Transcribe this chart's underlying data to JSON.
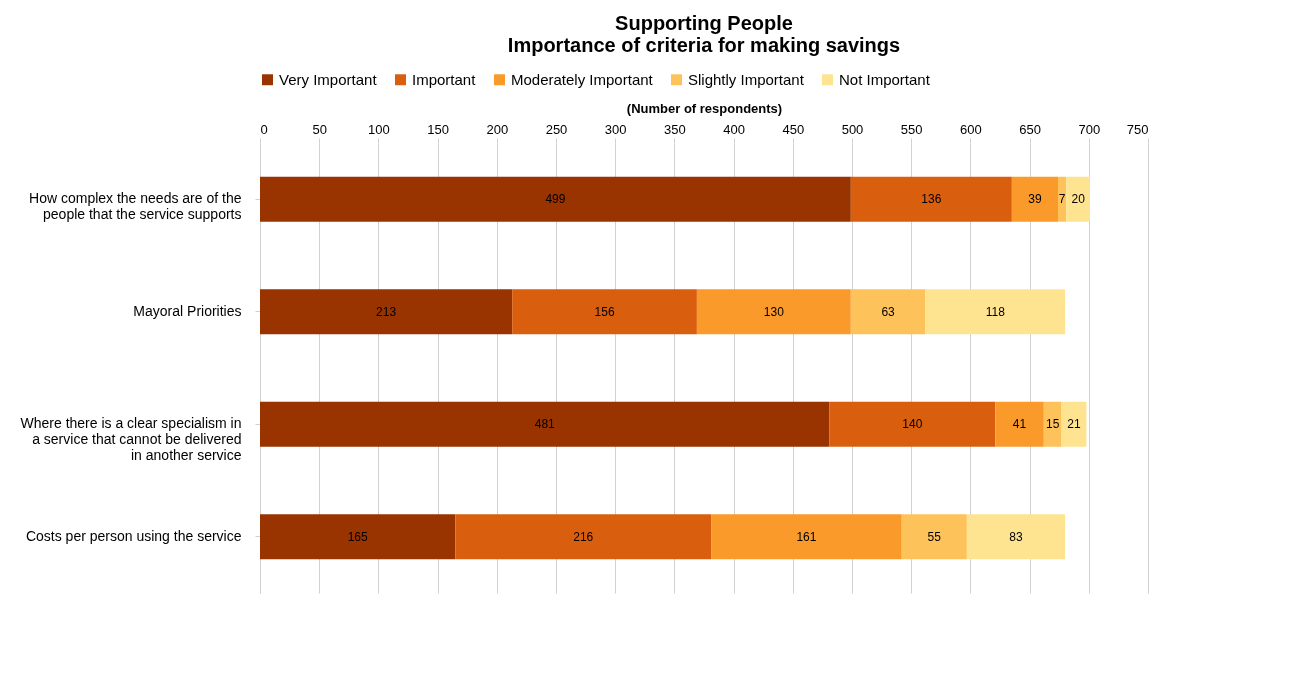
{
  "chart_data": {
    "type": "bar",
    "orientation": "horizontal",
    "stacked": true,
    "title": "Supporting People\nImportance of criteria for making savings",
    "xlabel": "(Number of respondents)",
    "categories": [
      "How complex the needs are of the people that the service supports",
      "Mayoral Priorities",
      "Where there is a clear specialism in a service that cannot be delivered in another service",
      "Costs per person using the service"
    ],
    "series": [
      {
        "name": "Very Important",
        "color": "#993300",
        "values": [
          499,
          213,
          481,
          165
        ]
      },
      {
        "name": "Important",
        "color": "#d95f0e",
        "values": [
          136,
          156,
          140,
          216
        ]
      },
      {
        "name": "Moderately Important",
        "color": "#f99a2b",
        "values": [
          39,
          130,
          41,
          161
        ]
      },
      {
        "name": "Slightly Important",
        "color": "#fdc35a",
        "values": [
          7,
          63,
          15,
          55
        ]
      },
      {
        "name": "Not Important",
        "color": "#fee391",
        "values": [
          20,
          118,
          21,
          83
        ]
      }
    ],
    "xlim": [
      0,
      750
    ],
    "xticks": [
      0,
      50,
      100,
      150,
      200,
      250,
      300,
      350,
      400,
      450,
      500,
      550,
      600,
      650,
      700,
      750
    ],
    "grid": "x",
    "legend": "top",
    "data_labels": true
  }
}
